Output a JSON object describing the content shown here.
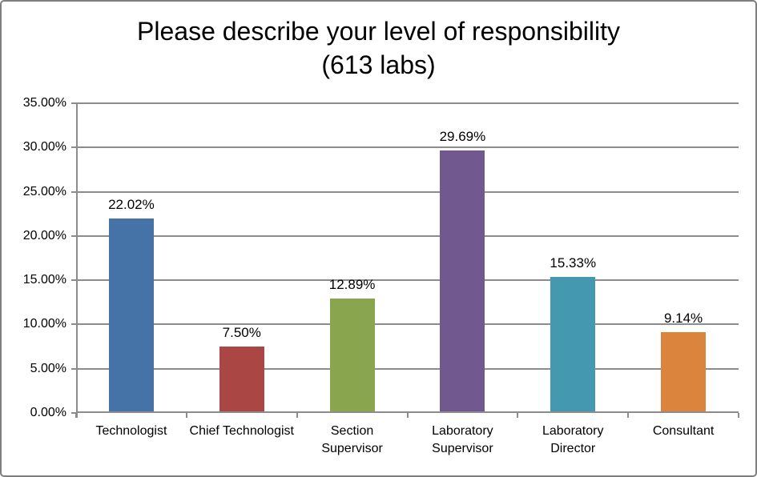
{
  "chart_data": {
    "type": "bar",
    "title": "Please describe your level of responsibility",
    "title_line2": "(613 labs)",
    "categories": [
      "Technologist",
      "Chief Technologist",
      "Section Supervisor",
      "Laboratory Supervisor",
      "Laboratory Director",
      "Consultant"
    ],
    "values": [
      22.02,
      7.5,
      12.89,
      29.69,
      15.33,
      9.14
    ],
    "data_labels": [
      "22.02%",
      "7.50%",
      "12.89%",
      "29.69%",
      "15.33%",
      "9.14%"
    ],
    "bar_colors": [
      "#4572A7",
      "#AA4643",
      "#89A54E",
      "#71588F",
      "#4499B0",
      "#DB843D"
    ],
    "xlabel": "",
    "ylabel": "",
    "ylim": [
      0,
      35
    ],
    "y_tick_step": 5,
    "y_tick_labels": [
      "0.00%",
      "5.00%",
      "10.00%",
      "15.00%",
      "20.00%",
      "25.00%",
      "30.00%",
      "35.00%"
    ],
    "grid": true,
    "legend": "none",
    "colors": {
      "gridline": "#8C8C8C",
      "axis": "#8C8C8C",
      "frame_border": "#7F7F7F",
      "text": "#000000",
      "background": "#FFFFFF"
    }
  }
}
